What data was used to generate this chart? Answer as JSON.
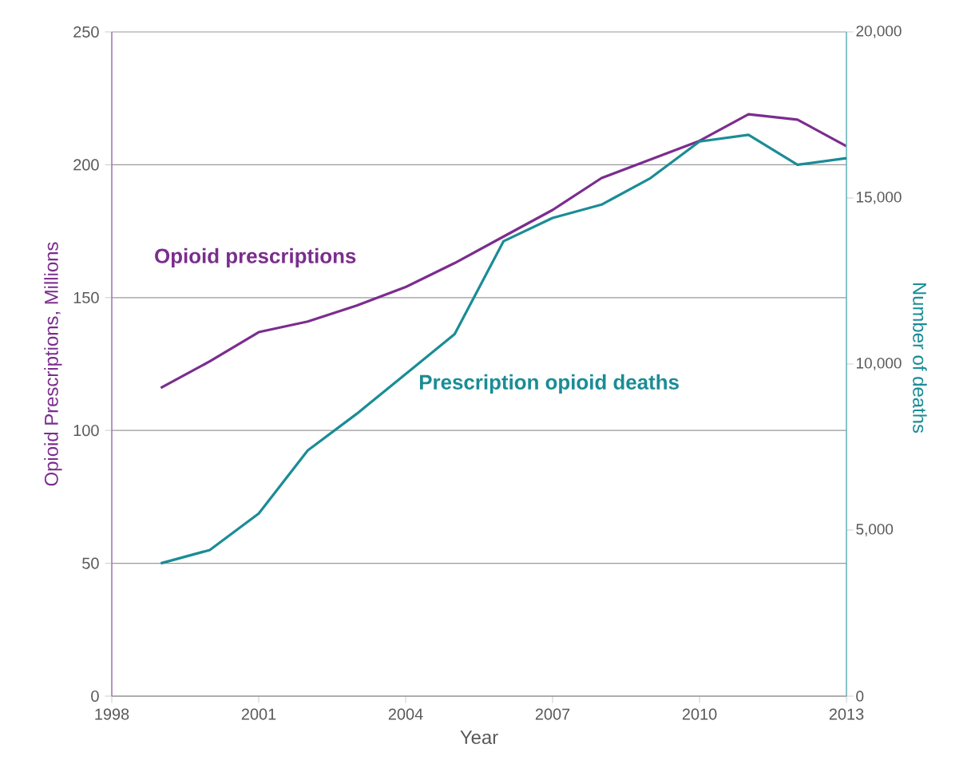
{
  "chart_data": {
    "type": "line",
    "xlabel": "Year",
    "ylabel": "Opioid Prescriptions, Millions",
    "y2label": "Number of deaths",
    "x": [
      1999,
      2000,
      2001,
      2002,
      2003,
      2004,
      2005,
      2006,
      2007,
      2008,
      2009,
      2010,
      2011,
      2012,
      2013
    ],
    "series": [
      {
        "name": "Opioid prescriptions",
        "color": "#7b2d8e",
        "values": [
          116,
          126,
          137,
          141,
          147,
          154,
          163,
          173,
          183,
          195,
          202,
          209,
          219,
          217,
          207
        ]
      },
      {
        "name": "Prescription opioid deaths",
        "color": "#1a8c96",
        "axis": "y2",
        "values": [
          4000,
          4400,
          5500,
          7400,
          8500,
          9700,
          10900,
          13700,
          14400,
          14800,
          15600,
          16700,
          16900,
          16000,
          16200
        ]
      }
    ],
    "xlim": [
      1998,
      2013
    ],
    "xticks": [
      1998,
      2001,
      2004,
      2007,
      2010,
      2013
    ],
    "ylim": [
      0,
      250
    ],
    "yticks": [
      0,
      50,
      100,
      150,
      200,
      250
    ],
    "y2lim": [
      0,
      20000
    ],
    "y2ticks": [
      0,
      {
        "value": 5000,
        "label": "5,000"
      },
      {
        "value": 10000,
        "label": "10,000"
      },
      {
        "value": 15000,
        "label": "15,000"
      },
      {
        "value": 20000,
        "label": "20,000"
      }
    ],
    "grid": "y",
    "legend": false,
    "marker": "none",
    "line_style": "solid"
  }
}
